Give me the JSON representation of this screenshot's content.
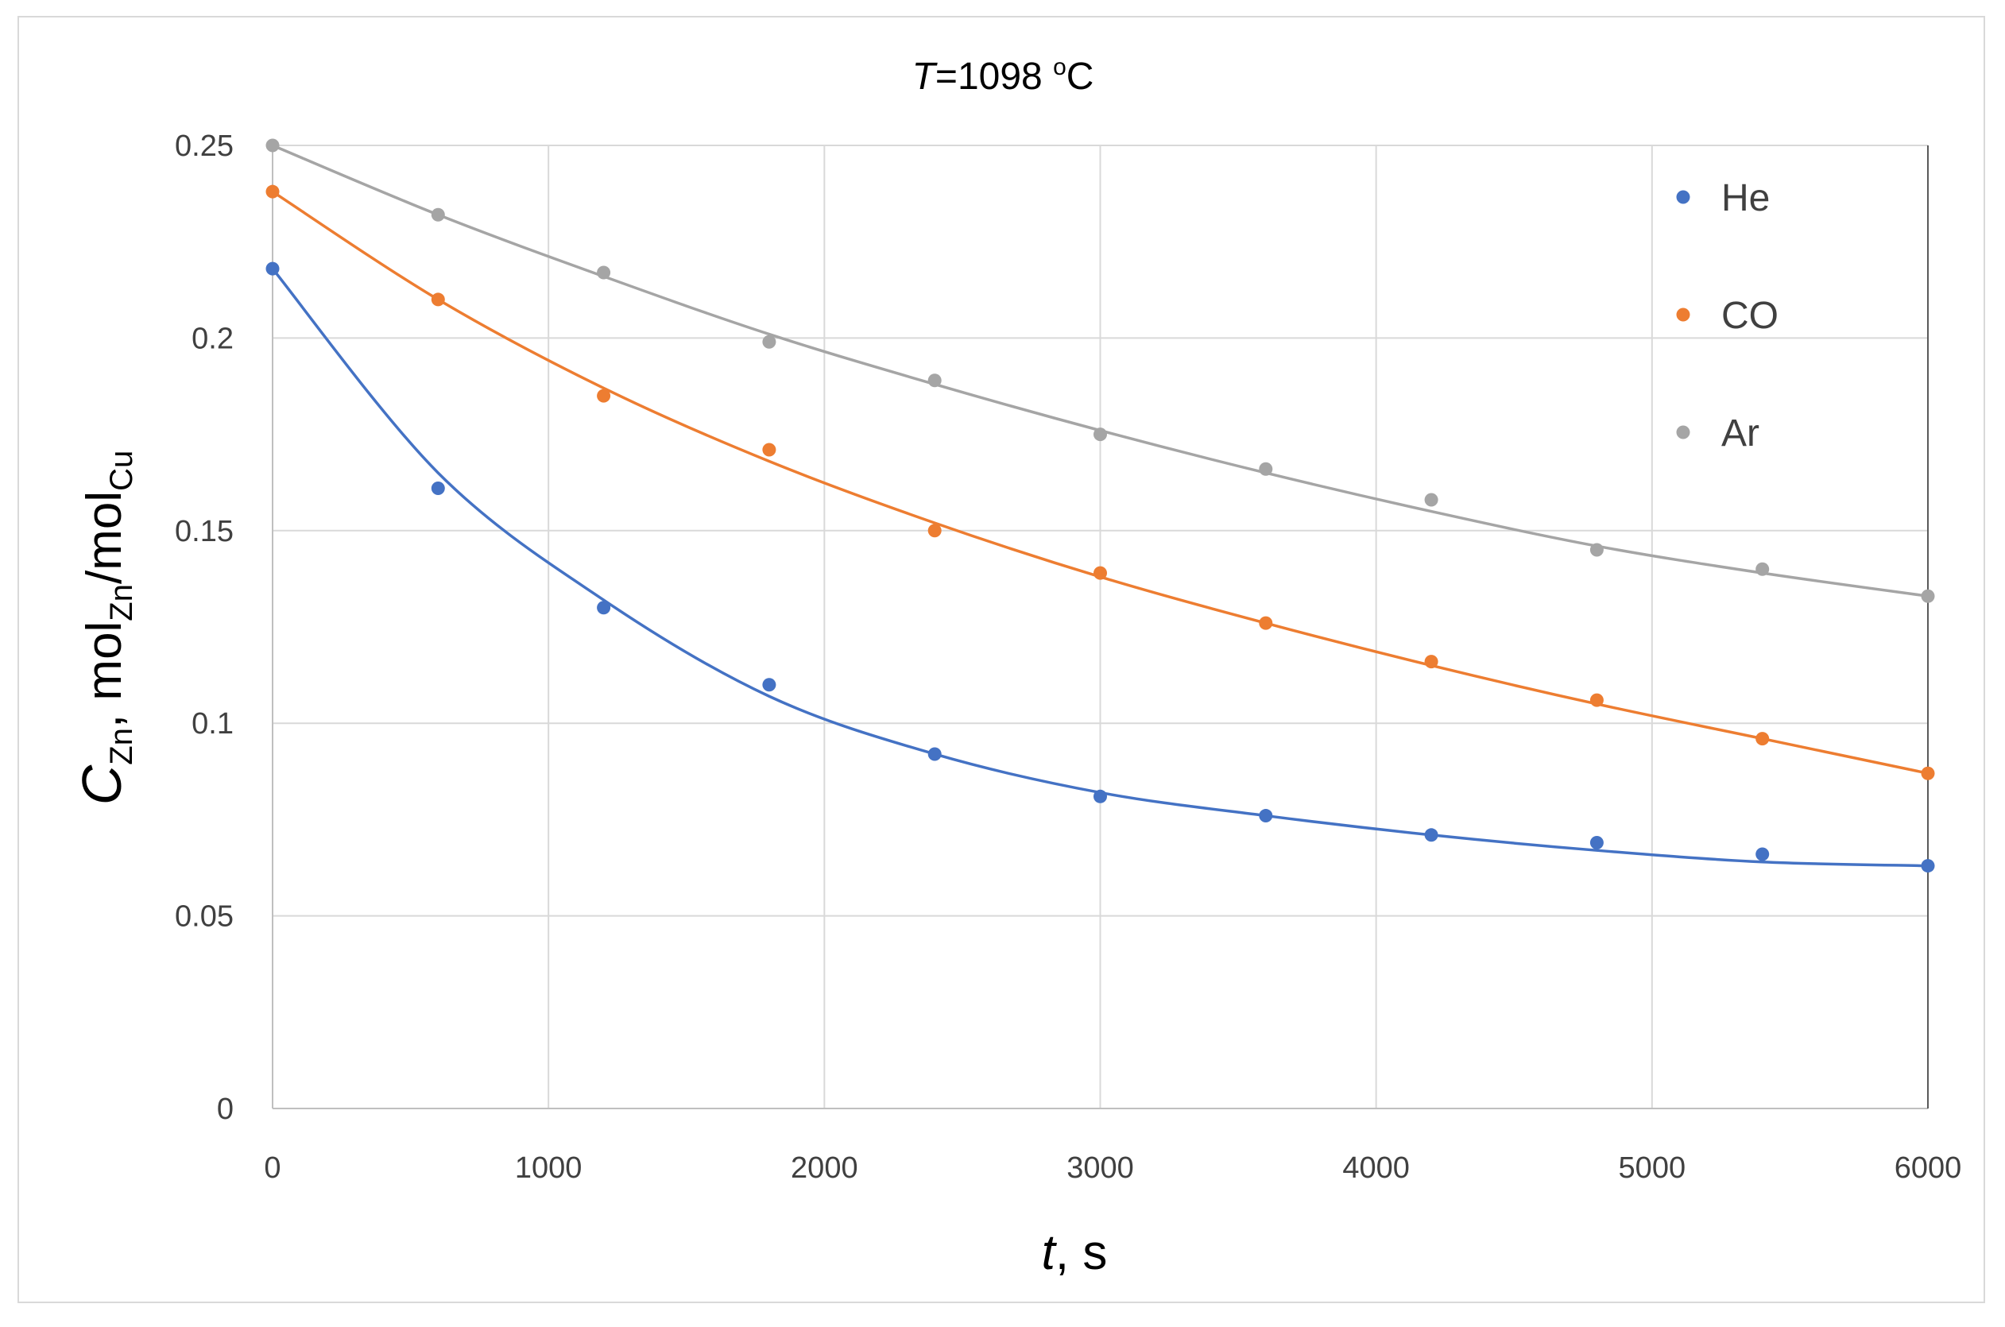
{
  "chart_data": {
    "type": "scatter",
    "title": {
      "symbol": "T",
      "text": "=1098 ",
      "sup": "o",
      "unit": "C"
    },
    "xlabel": {
      "symbol": "t",
      "unit": ", s"
    },
    "ylabel": {
      "symbol": "C",
      "symbol_sub": "Zn",
      "mid": ", mol",
      "mid_sub": "Zn",
      "slash": "/mol",
      "end_sub": "Cu"
    },
    "xlim": [
      0,
      6000
    ],
    "ylim": [
      0,
      0.25
    ],
    "x_ticks": [
      0,
      1000,
      2000,
      3000,
      4000,
      5000,
      6000
    ],
    "x_tick_labels": [
      "0",
      "1000",
      "2000",
      "3000",
      "4000",
      "5000",
      "6000"
    ],
    "y_ticks": [
      0,
      0.05,
      0.1,
      0.15,
      0.2,
      0.25
    ],
    "y_tick_labels": [
      "0",
      "0.05",
      "0.1",
      "0.15",
      "0.2",
      "0.25"
    ],
    "grid": true,
    "legend_position": "top-right",
    "x": [
      0,
      600,
      1200,
      1800,
      2400,
      3000,
      3600,
      4200,
      4800,
      5400,
      6000
    ],
    "series": [
      {
        "name": "He",
        "color": "#4472c4",
        "values": [
          0.218,
          0.161,
          0.13,
          0.11,
          0.092,
          0.081,
          0.076,
          0.071,
          0.069,
          0.066,
          0.063
        ],
        "fit": [
          0.218,
          0.165,
          0.132,
          0.107,
          0.092,
          0.082,
          0.076,
          0.071,
          0.067,
          0.064,
          0.063
        ]
      },
      {
        "name": "CO",
        "color": "#ed7d31",
        "values": [
          0.238,
          0.21,
          0.185,
          0.171,
          0.15,
          0.139,
          0.126,
          0.116,
          0.106,
          0.096,
          0.087
        ],
        "fit": [
          0.238,
          0.21,
          0.187,
          0.168,
          0.152,
          0.138,
          0.126,
          0.115,
          0.105,
          0.096,
          0.087
        ]
      },
      {
        "name": "Ar",
        "color": "#a5a5a5",
        "values": [
          0.25,
          0.232,
          0.217,
          0.199,
          0.189,
          0.175,
          0.166,
          0.158,
          0.145,
          0.14,
          0.133
        ],
        "fit": [
          0.25,
          0.232,
          0.216,
          0.201,
          0.188,
          0.176,
          0.165,
          0.155,
          0.146,
          0.139,
          0.133
        ]
      }
    ]
  }
}
